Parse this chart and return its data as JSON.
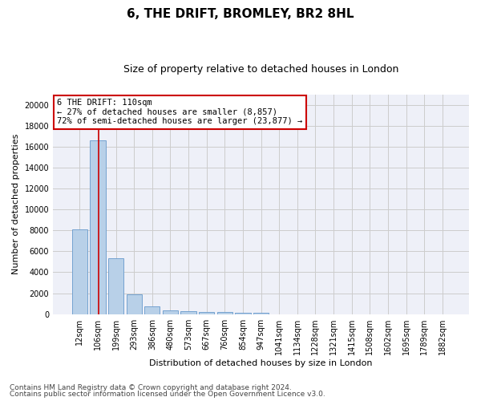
{
  "title_line1": "6, THE DRIFT, BROMLEY, BR2 8HL",
  "title_line2": "Size of property relative to detached houses in London",
  "xlabel": "Distribution of detached houses by size in London",
  "ylabel": "Number of detached properties",
  "categories": [
    "12sqm",
    "106sqm",
    "199sqm",
    "293sqm",
    "386sqm",
    "480sqm",
    "573sqm",
    "667sqm",
    "760sqm",
    "854sqm",
    "947sqm",
    "1041sqm",
    "1134sqm",
    "1228sqm",
    "1321sqm",
    "1415sqm",
    "1508sqm",
    "1602sqm",
    "1695sqm",
    "1789sqm",
    "1882sqm"
  ],
  "values": [
    8100,
    16600,
    5300,
    1850,
    700,
    350,
    270,
    220,
    180,
    150,
    100,
    0,
    0,
    0,
    0,
    0,
    0,
    0,
    0,
    0,
    0
  ],
  "bar_color": "#b8d0e8",
  "bar_edge_color": "#6699cc",
  "grid_color": "#cccccc",
  "background_color": "#eef0f8",
  "vline_x": 1.05,
  "vline_color": "#cc0000",
  "annotation_title": "6 THE DRIFT: 110sqm",
  "annotation_line1": "← 27% of detached houses are smaller (8,857)",
  "annotation_line2": "72% of semi-detached houses are larger (23,877) →",
  "annotation_box_color": "#ffffff",
  "annotation_box_edge_color": "#cc0000",
  "ylim": [
    0,
    21000
  ],
  "yticks": [
    0,
    2000,
    4000,
    6000,
    8000,
    10000,
    12000,
    14000,
    16000,
    18000,
    20000
  ],
  "footer_line1": "Contains HM Land Registry data © Crown copyright and database right 2024.",
  "footer_line2": "Contains public sector information licensed under the Open Government Licence v3.0.",
  "title_fontsize": 11,
  "subtitle_fontsize": 9,
  "axis_label_fontsize": 8,
  "tick_fontsize": 7,
  "annotation_fontsize": 7.5,
  "footer_fontsize": 6.5
}
